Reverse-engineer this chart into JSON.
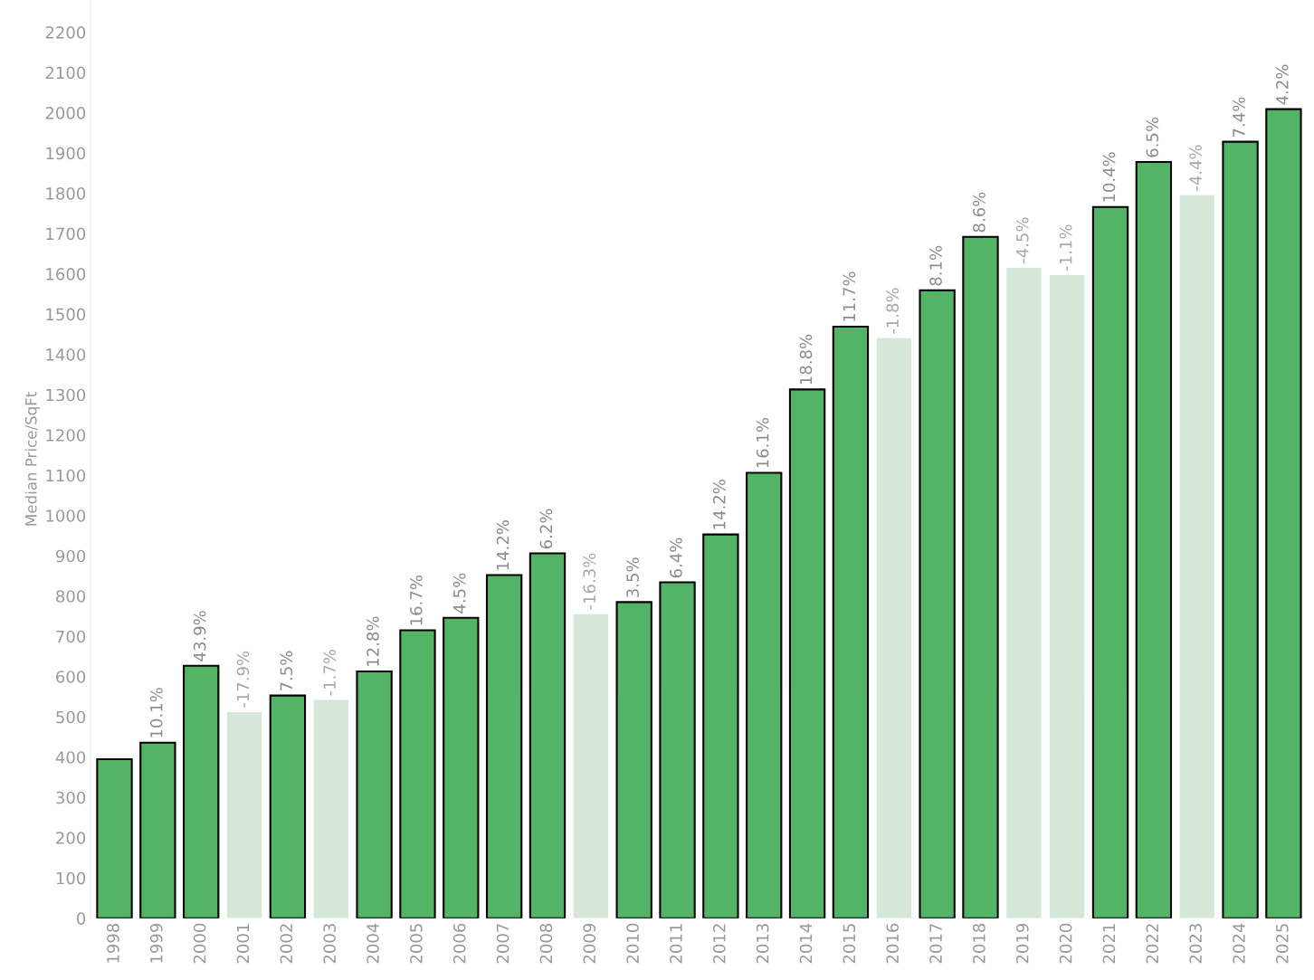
{
  "chart_data": {
    "type": "bar",
    "ylabel": "Median Price/SqFt",
    "categories": [
      "1998",
      "1999",
      "2000",
      "2001",
      "2002",
      "2003",
      "2004",
      "2005",
      "2006",
      "2007",
      "2008",
      "2009",
      "2010",
      "2011",
      "2012",
      "2013",
      "2014",
      "2015",
      "2016",
      "2017",
      "2018",
      "2019",
      "2020",
      "2021",
      "2022",
      "2023",
      "2024",
      "2025"
    ],
    "values": [
      395,
      436,
      627,
      512,
      553,
      542,
      613,
      715,
      746,
      852,
      906,
      755,
      785,
      834,
      953,
      1106,
      1313,
      1469,
      1440,
      1559,
      1692,
      1615,
      1597,
      1766,
      1878,
      1795,
      1928,
      2009
    ],
    "colors": [
      "#52b464",
      "#52b464",
      "#52b464",
      "#d5e8d8",
      "#52b464",
      "#d5e8d8",
      "#52b464",
      "#52b464",
      "#52b464",
      "#52b464",
      "#52b464",
      "#d5e8d8",
      "#52b464",
      "#52b464",
      "#52b464",
      "#52b464",
      "#52b464",
      "#52b464",
      "#d5e8d8",
      "#52b464",
      "#52b464",
      "#d5e8d8",
      "#d5e8d8",
      "#52b464",
      "#52b464",
      "#d5e8d8",
      "#52b464",
      "#52b464"
    ],
    "annotations": [
      {
        "text": "10.1%",
        "x": "1999",
        "y": 436
      },
      {
        "text": "43.9%",
        "x": "2000",
        "y": 627
      },
      {
        "text": "-17.9%",
        "x": "2001",
        "y": 512
      },
      {
        "text": "7.5%",
        "x": "2002",
        "y": 553
      },
      {
        "text": "-1.7%",
        "x": "2003",
        "y": 542
      },
      {
        "text": "12.8%",
        "x": "2004",
        "y": 613
      },
      {
        "text": "16.7%",
        "x": "2005",
        "y": 715
      },
      {
        "text": "4.5%",
        "x": "2006",
        "y": 746
      },
      {
        "text": "14.2%",
        "x": "2007",
        "y": 852
      },
      {
        "text": "6.2%",
        "x": "2008",
        "y": 906
      },
      {
        "text": "-16.3%",
        "x": "2009",
        "y": 755
      },
      {
        "text": "3.5%",
        "x": "2010",
        "y": 785
      },
      {
        "text": "6.4%",
        "x": "2011",
        "y": 834
      },
      {
        "text": "14.2%",
        "x": "2012",
        "y": 953
      },
      {
        "text": "16.1%",
        "x": "2013",
        "y": 1106
      },
      {
        "text": "18.8%",
        "x": "2014",
        "y": 1313
      },
      {
        "text": "11.7%",
        "x": "2015",
        "y": 1469
      },
      {
        "text": "-1.8%",
        "x": "2016",
        "y": 1440
      },
      {
        "text": "8.1%",
        "x": "2017",
        "y": 1559
      },
      {
        "text": "8.6%",
        "x": "2018",
        "y": 1692
      },
      {
        "text": "-4.5%",
        "x": "2019",
        "y": 1615
      },
      {
        "text": "-1.1%",
        "x": "2020",
        "y": 1597
      },
      {
        "text": "10.4%",
        "x": "2021",
        "y": 1766
      },
      {
        "text": "6.5%",
        "x": "2022",
        "y": 1878
      },
      {
        "text": "-4.4%",
        "x": "2023",
        "y": 1795
      },
      {
        "text": "7.4%",
        "x": "2024",
        "y": 1928
      },
      {
        "text": "4.2%",
        "x": "2025",
        "y": 2009
      }
    ],
    "ylim": [
      0,
      2280
    ],
    "yticks": [
      0,
      100,
      200,
      300,
      400,
      500,
      600,
      700,
      800,
      900,
      1000,
      1100,
      1200,
      1300,
      1400,
      1500,
      1600,
      1700,
      1800,
      1900,
      2000,
      2100,
      2200
    ],
    "grid": false
  }
}
